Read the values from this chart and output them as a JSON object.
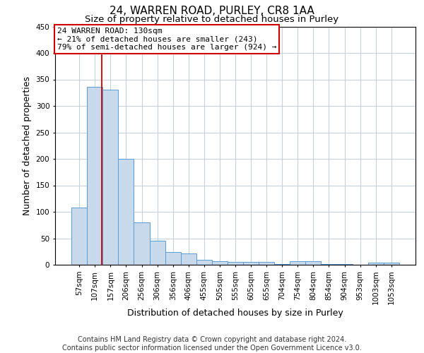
{
  "title": "24, WARREN ROAD, PURLEY, CR8 1AA",
  "subtitle": "Size of property relative to detached houses in Purley",
  "xlabel": "Distribution of detached houses by size in Purley",
  "ylabel": "Number of detached properties",
  "footer_line1": "Contains HM Land Registry data © Crown copyright and database right 2024.",
  "footer_line2": "Contains public sector information licensed under the Open Government Licence v3.0.",
  "categories": [
    "57sqm",
    "107sqm",
    "157sqm",
    "206sqm",
    "256sqm",
    "306sqm",
    "356sqm",
    "406sqm",
    "455sqm",
    "505sqm",
    "555sqm",
    "605sqm",
    "655sqm",
    "704sqm",
    "754sqm",
    "804sqm",
    "854sqm",
    "904sqm",
    "953sqm",
    "1003sqm",
    "1053sqm"
  ],
  "values": [
    108,
    336,
    331,
    200,
    80,
    46,
    24,
    21,
    10,
    7,
    6,
    6,
    6,
    2,
    7,
    7,
    2,
    1,
    0,
    4,
    4
  ],
  "bar_color": "#c9d9ec",
  "bar_edge_color": "#5b9bd5",
  "annotation_line1": "24 WARREN ROAD: 130sqm",
  "annotation_line2": "← 21% of detached houses are smaller (243)",
  "annotation_line3": "79% of semi-detached houses are larger (924) →",
  "annotation_box_color": "white",
  "annotation_box_edge_color": "#cc0000",
  "property_line_color": "#cc0000",
  "ylim": [
    0,
    450
  ],
  "yticks": [
    0,
    50,
    100,
    150,
    200,
    250,
    300,
    350,
    400,
    450
  ],
  "background_color": "white",
  "grid_color": "#c8d0dc",
  "title_fontsize": 11,
  "subtitle_fontsize": 9.5,
  "xlabel_fontsize": 9,
  "ylabel_fontsize": 9,
  "tick_fontsize": 7.5,
  "annotation_fontsize": 8,
  "footer_fontsize": 7
}
